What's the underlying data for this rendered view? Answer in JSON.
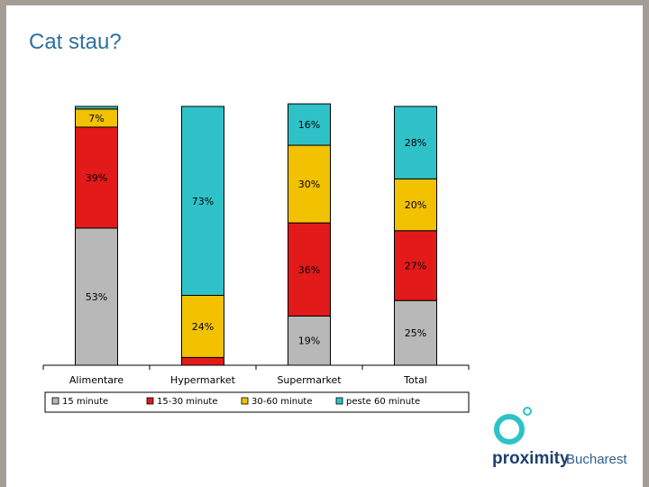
{
  "slide": {
    "title": "Cat stau?"
  },
  "logo": {
    "brand": "proximity",
    "city": "Bucharest"
  },
  "chart_data": {
    "type": "bar",
    "stacked": true,
    "percent_stacked": true,
    "categories": [
      "Alimentare",
      "Hypermarket",
      "Supermarket",
      "Total"
    ],
    "series": [
      {
        "name": "15 minute",
        "color": "#b8b8b8",
        "values": [
          53,
          0,
          19,
          25
        ]
      },
      {
        "name": "15-30 minute",
        "color": "#e21a1a",
        "values": [
          39,
          3,
          36,
          27
        ]
      },
      {
        "name": "30-60 minute",
        "color": "#f2c100",
        "values": [
          7,
          24,
          30,
          20
        ]
      },
      {
        "name": "peste 60 minute",
        "color": "#2ec2c8",
        "values": [
          1,
          73,
          16,
          28
        ]
      }
    ],
    "data_labels": [
      [
        "53%",
        "",
        "19%",
        "25%"
      ],
      [
        "39%",
        "3%",
        "36%",
        "27%"
      ],
      [
        "7%",
        "24%",
        "30%",
        "20%"
      ],
      [
        "",
        "73%",
        "16%",
        "28%"
      ]
    ],
    "ylim": [
      0,
      100
    ],
    "legend_position": "bottom",
    "grid": false
  }
}
